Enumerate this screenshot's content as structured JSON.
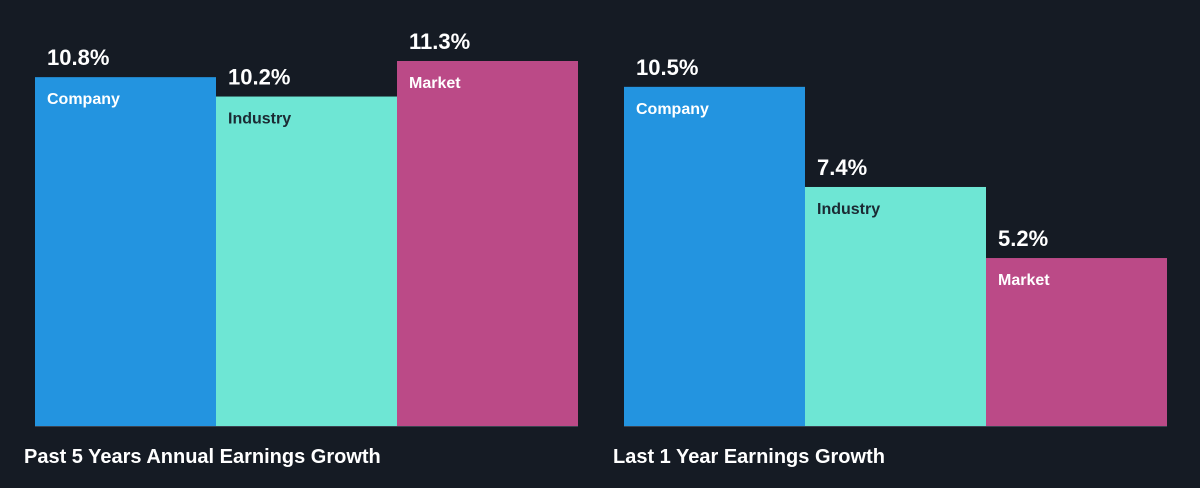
{
  "colors": {
    "background": "#151b24",
    "company": "#2394e0",
    "industry": "#6ee6d4",
    "market": "#bb4a87",
    "baseline": "#3a4350",
    "label_on_light": "#1b2a33",
    "label_on_dark": "#ffffff"
  },
  "chart_data": [
    {
      "type": "bar",
      "title": "Past 5 Years Annual Earnings Growth",
      "categories": [
        "Company",
        "Industry",
        "Market"
      ],
      "values": [
        10.8,
        10.2,
        11.3
      ],
      "value_labels": [
        "10.8%",
        "10.2%",
        "11.3%"
      ],
      "unit": "%",
      "ylim": [
        0,
        11.3
      ],
      "grid": false,
      "legend": "none"
    },
    {
      "type": "bar",
      "title": "Last 1 Year Earnings Growth",
      "categories": [
        "Company",
        "Industry",
        "Market"
      ],
      "values": [
        10.5,
        7.4,
        5.2
      ],
      "value_labels": [
        "10.5%",
        "7.4%",
        "5.2%"
      ],
      "unit": "%",
      "ylim": [
        0,
        11.3
      ],
      "grid": false,
      "legend": "none"
    }
  ]
}
